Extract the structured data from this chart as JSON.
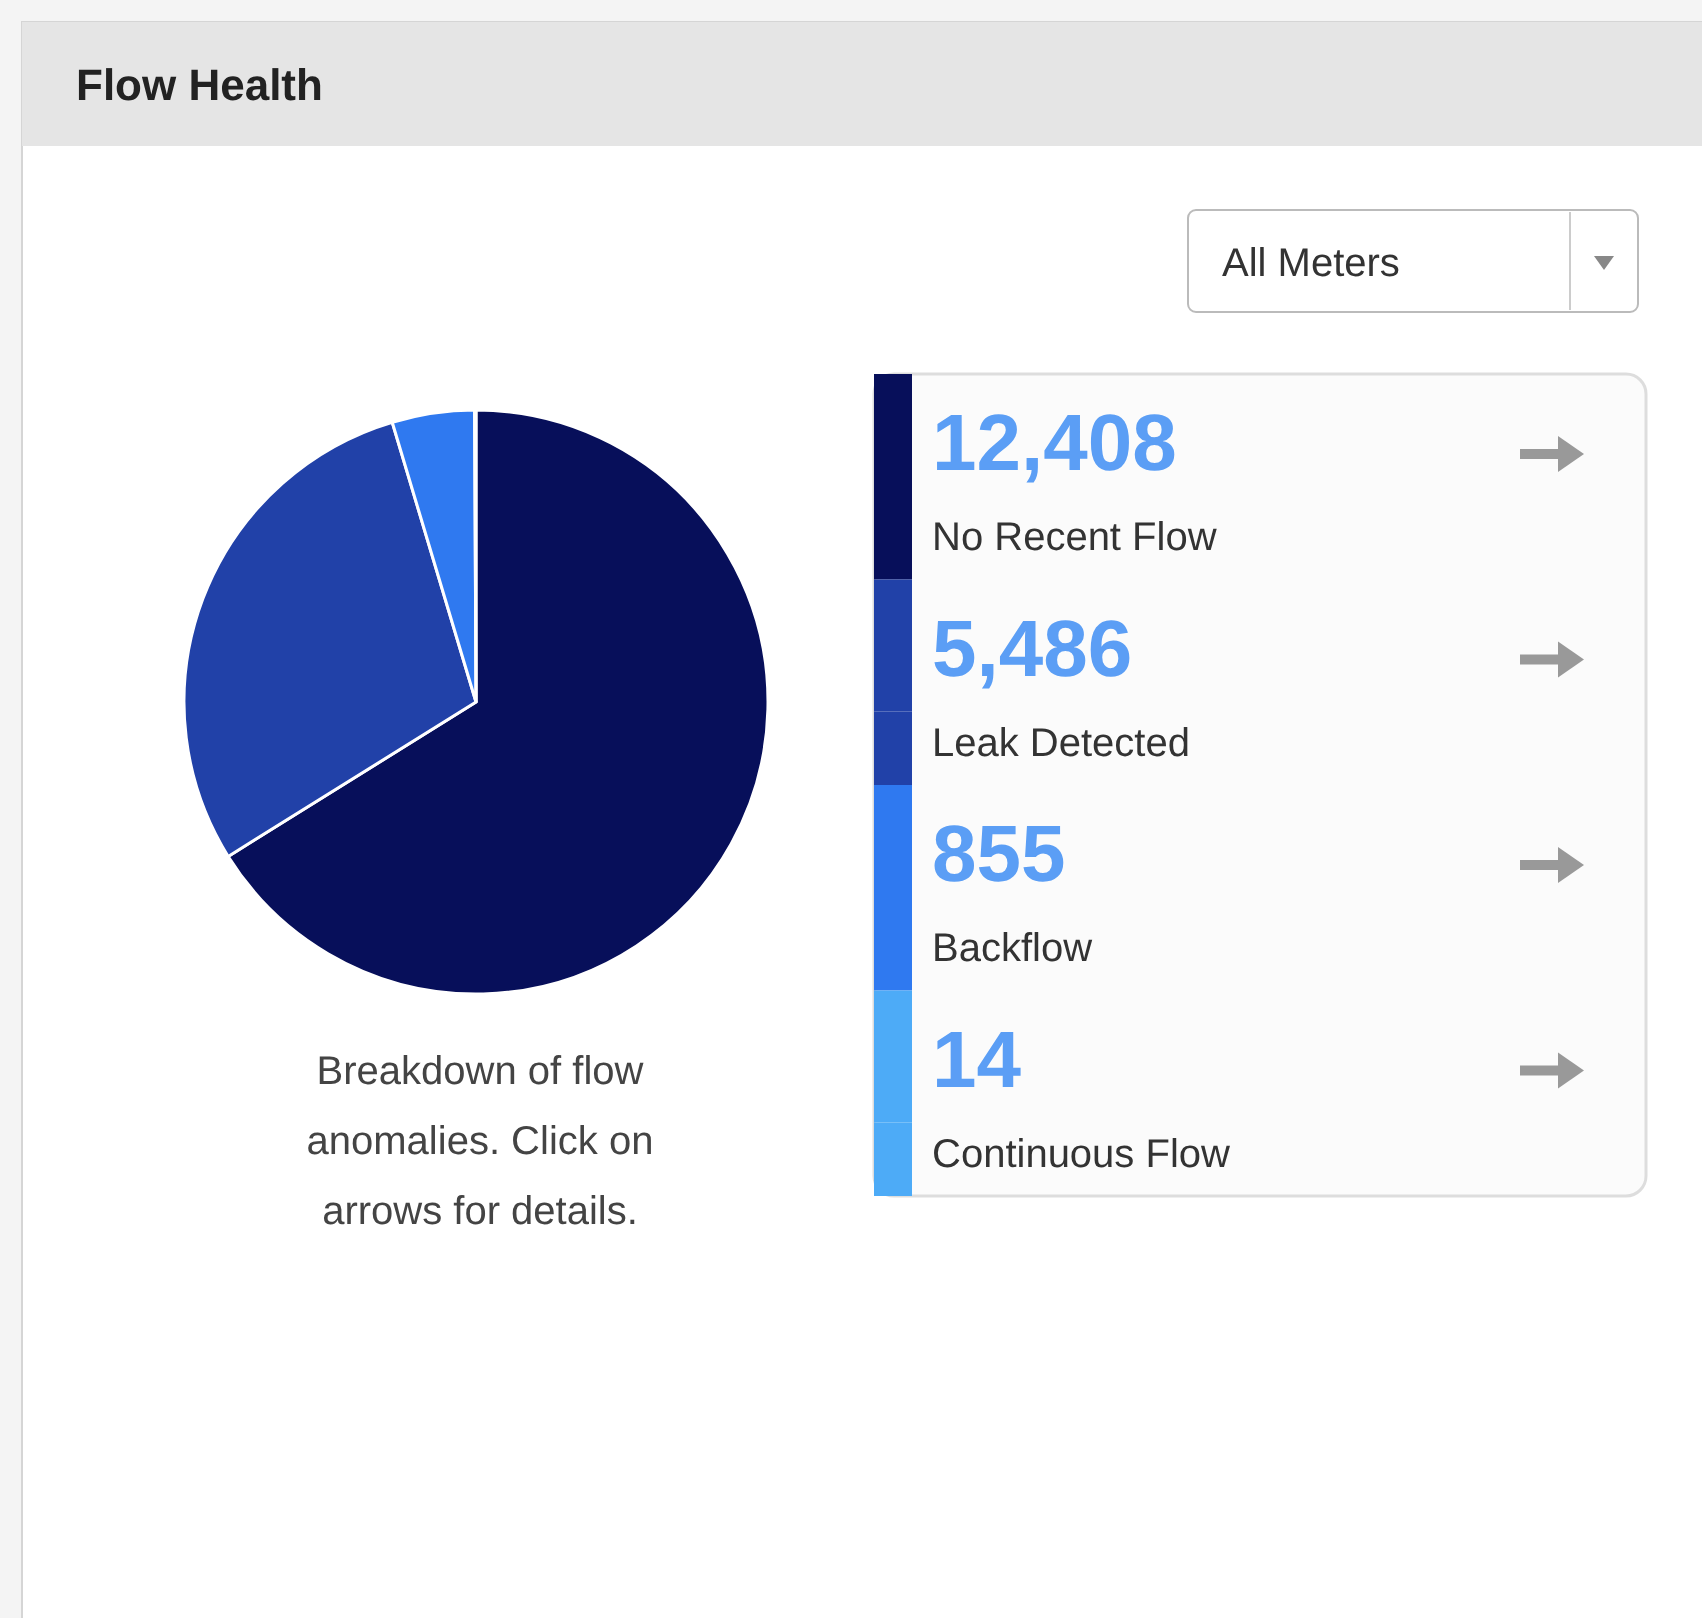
{
  "chart_data": {
    "type": "pie",
    "title": "Flow Health",
    "categories": [
      "No Recent Flow",
      "Leak Detected",
      "Backflow",
      "Continuous Flow"
    ],
    "values": [
      12408,
      5486,
      855,
      14
    ],
    "colors": [
      "#070f5a",
      "#2141a8",
      "#2f79f0",
      "#4dabf7"
    ],
    "value_labels": [
      "12,408",
      "5,486",
      "855",
      "14"
    ],
    "legend": "right",
    "annotations": [
      "All Meters",
      "Breakdown of flow anomalies. Click on arrows for details."
    ]
  }
}
